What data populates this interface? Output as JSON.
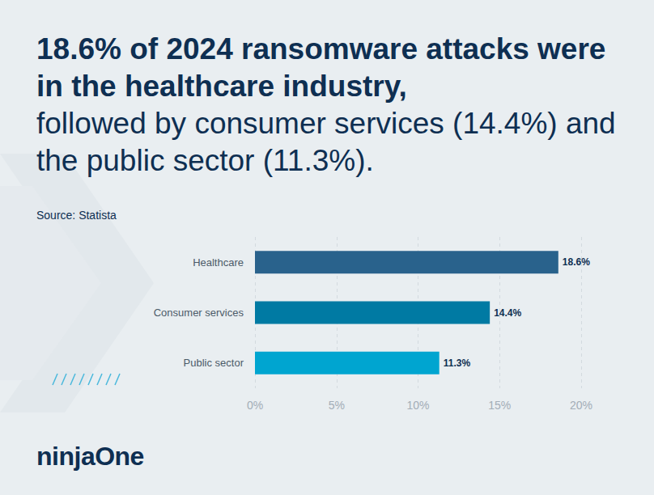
{
  "chart_data": {
    "type": "bar",
    "title": "18.6% of 2024 ransomware attacks were in the healthcare industry,",
    "subtitle": "followed by consumer services (14.4%) and the public sector (11.3%).",
    "source": "Source: Statista",
    "logo": "ninjaOne",
    "orientation": "horizontal",
    "categories": [
      "Healthcare",
      "Consumer services",
      "Public sector"
    ],
    "values": [
      18.6,
      14.4,
      11.3
    ],
    "value_labels": [
      "18.6%",
      "14.4%",
      "11.3%"
    ],
    "colors": [
      "#29628c",
      "#007aa3",
      "#00a5d0"
    ],
    "data_labels": true,
    "xlim": [
      0,
      20
    ],
    "xticks": [
      {
        "value": 0,
        "label": "0%"
      },
      {
        "value": 5,
        "label": "5%"
      },
      {
        "value": 10,
        "label": "10%"
      },
      {
        "value": 15,
        "label": "15%"
      },
      {
        "value": 20,
        "label": "20%"
      }
    ],
    "grid": true
  }
}
